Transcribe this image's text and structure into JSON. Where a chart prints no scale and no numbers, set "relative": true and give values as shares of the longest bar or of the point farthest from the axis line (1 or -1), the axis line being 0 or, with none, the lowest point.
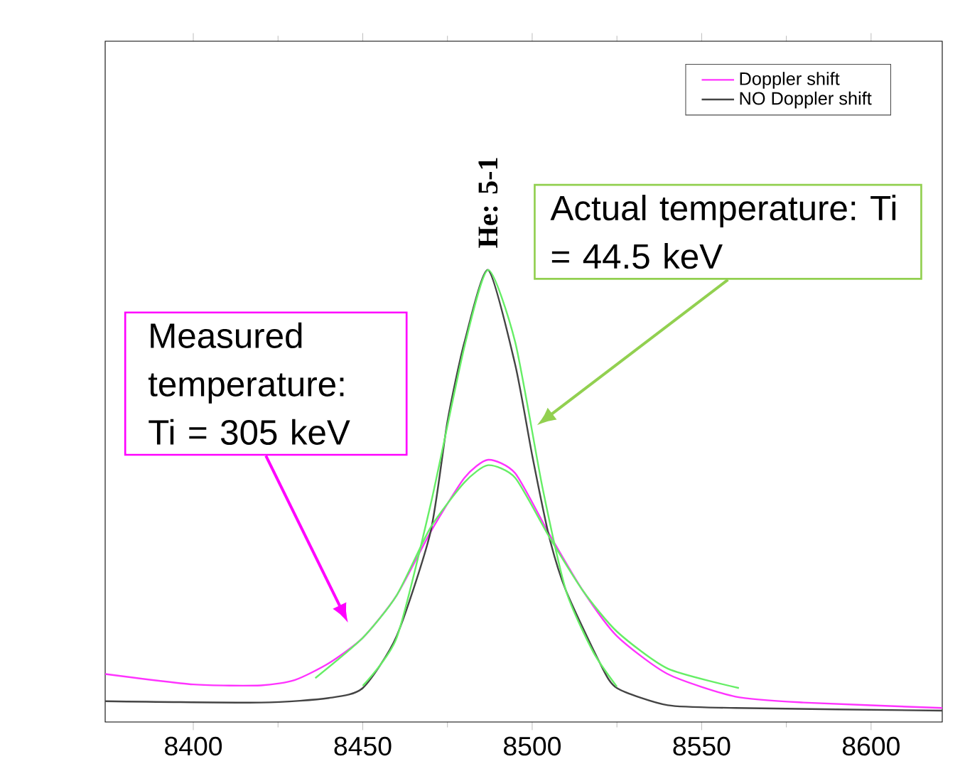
{
  "chart_data": {
    "type": "line",
    "relative": true,
    "xlim": [
      8374,
      8621
    ],
    "xticks": [
      8400,
      8450,
      8500,
      8550,
      8600
    ],
    "legend": "top right",
    "series": [
      {
        "name": "Doppler shift",
        "color": "#ff33ff",
        "x": [
          8374,
          8400,
          8420,
          8430,
          8440,
          8450,
          8460,
          8470,
          8480,
          8487,
          8495,
          8505,
          8515,
          8525,
          8540,
          8560,
          8580,
          8621
        ],
        "values": [
          0.106,
          0.083,
          0.081,
          0.093,
          0.13,
          0.186,
          0.28,
          0.42,
          0.54,
          0.58,
          0.55,
          0.416,
          0.29,
          0.19,
          0.106,
          0.056,
          0.043,
          0.031
        ]
      },
      {
        "name": "NO Doppler shift",
        "color": "#444444",
        "x": [
          8374,
          8420,
          8440,
          8450,
          8460,
          8470,
          8475,
          8480,
          8487,
          8495,
          8500,
          8505,
          8510,
          8520,
          8525,
          8540,
          8560,
          8621
        ],
        "values": [
          0.046,
          0.043,
          0.053,
          0.075,
          0.19,
          0.42,
          0.665,
          0.84,
          1,
          0.79,
          0.59,
          0.41,
          0.29,
          0.13,
          0.075,
          0.037,
          0.031,
          0.025
        ]
      },
      {
        "color": "#66ee66",
        "x": [
          8450,
          8460,
          8470,
          8480,
          8487,
          8495,
          8503,
          8510,
          8518,
          8525
        ],
        "values": [
          0.08,
          0.186,
          0.48,
          0.83,
          1,
          0.84,
          0.52,
          0.29,
          0.155,
          0.078
        ]
      },
      {
        "color": "#66ee66",
        "x": [
          8436,
          8450,
          8460,
          8470,
          8480,
          8487,
          8495,
          8505,
          8515,
          8525,
          8540,
          8561
        ],
        "values": [
          0.097,
          0.186,
          0.28,
          0.43,
          0.53,
          0.568,
          0.54,
          0.41,
          0.29,
          0.2,
          0.118,
          0.075
        ]
      }
    ],
    "annotations": [
      {
        "text": "He: 5-1",
        "x": 8487,
        "y": 1
      },
      "Measured temperature: Ti = 305 keV",
      "Actual temperature: Ti = 44.5 keV"
    ]
  }
}
